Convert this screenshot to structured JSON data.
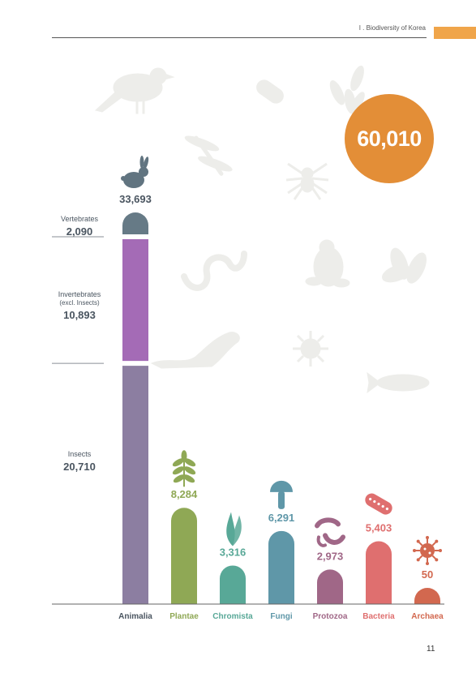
{
  "header": {
    "section": "I . Biodiversity of Korea",
    "accent_color": "#f0a54a"
  },
  "total": {
    "value": "60,010",
    "color": "#e38e37"
  },
  "page_number": "11",
  "chart_data": {
    "type": "bar",
    "title": "",
    "xlabel": "",
    "ylabel": "",
    "categories": [
      "Animalia",
      "Plantae",
      "Chromista",
      "Fungi",
      "Protozoa",
      "Bacteria",
      "Archaea"
    ],
    "values": [
      33693,
      8284,
      3316,
      6291,
      2973,
      5403,
      50
    ],
    "value_labels": [
      "33,693",
      "8,284",
      "3,316",
      "6,291",
      "2,973",
      "5,403",
      "50"
    ],
    "colors": [
      "#617480",
      "#8fa855",
      "#58a897",
      "#5f97a8",
      "#a06787",
      "#df6f6f",
      "#d2684f"
    ],
    "icons": [
      "rabbit-icon",
      "leaf-icon",
      "seaweed-icon",
      "mushroom-icon",
      "protozoa-icon",
      "bacterium-icon",
      "virus-icon"
    ],
    "animalia_breakdown": [
      {
        "name": "Vertebrates",
        "sub": "",
        "value": 2090,
        "label": "2,090",
        "color": "#667a86"
      },
      {
        "name": "Invertebrates",
        "sub": "(excl. Insects)",
        "value": 10893,
        "label": "10,893",
        "color": "#a46bb6"
      },
      {
        "name": "Insects",
        "sub": "",
        "value": 20710,
        "label": "20,710",
        "color": "#8c7ea1"
      }
    ],
    "background_silhouettes": [
      "bird-icon",
      "bacillus-icon",
      "kelp-icon",
      "dragonfly-icon",
      "spider-icon",
      "snake-icon",
      "frog-icon",
      "leaves-icon",
      "otter-icon",
      "microbe-icon",
      "fish-icon"
    ]
  }
}
